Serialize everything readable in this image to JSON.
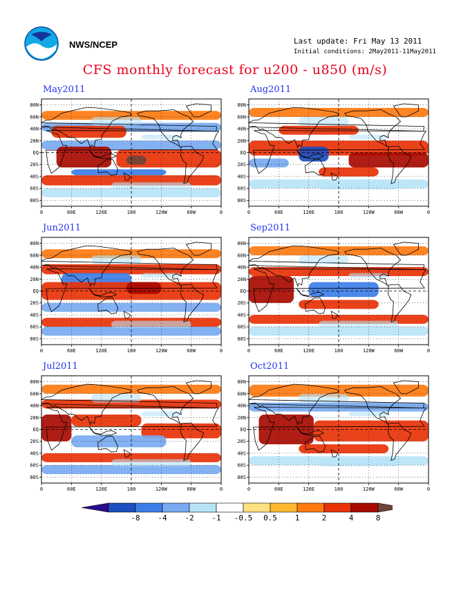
{
  "header": {
    "org": "NWS/NCEP",
    "last_update": "Last update: Fri May 13 2011",
    "initial_conditions": "Initial conditions: 2May2011-11May2011",
    "title": "CFS monthly forecast for u200 - u850 (m/s)"
  },
  "axes": {
    "lat_labels": [
      "80N",
      "60N",
      "40N",
      "20N",
      "EQ",
      "20S",
      "40S",
      "60S",
      "80S"
    ],
    "lon_labels": [
      "0",
      "60E",
      "120E",
      "180",
      "120W",
      "60W",
      "0"
    ]
  },
  "panels": [
    {
      "label": "May2011",
      "position": "left column, row 1"
    },
    {
      "label": "Aug2011",
      "position": "right column, row 1"
    },
    {
      "label": "Jun2011",
      "position": "left column, row 2"
    },
    {
      "label": "Sep2011",
      "position": "right column, row 2"
    },
    {
      "label": "Jul2011",
      "position": "left column, row 3"
    },
    {
      "label": "Oct2011",
      "position": "right column, row 3"
    }
  ],
  "colorbar": {
    "tick_labels": [
      "-8",
      "-4",
      "-2",
      "-1",
      "-0.5",
      "0.5",
      "1",
      "2",
      "4",
      "8"
    ],
    "colors": [
      "#2a0a8a",
      "#1e4fc0",
      "#3c7ee8",
      "#78aaf0",
      "#b8e4f8",
      "#ffffff",
      "#ffe080",
      "#ffb830",
      "#ff7a10",
      "#e83208",
      "#a80a00",
      "#6e4436"
    ]
  },
  "colors": {
    "title": "#e8001c",
    "panel_label": "#2233ee"
  }
}
